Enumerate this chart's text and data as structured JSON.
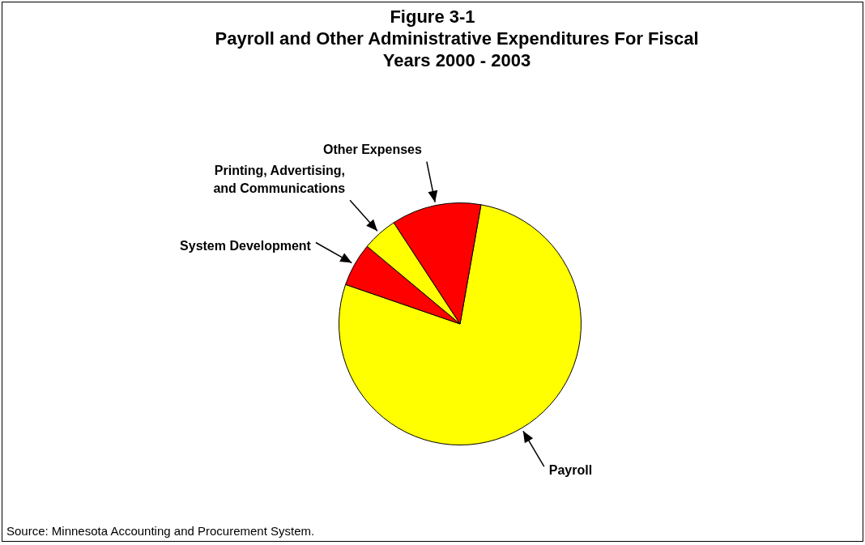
{
  "chart_data": {
    "type": "pie",
    "title": "Figure 3-1",
    "subtitle": "Payroll and Other Administrative Expenditures For Fiscal Years 2000 - 2003",
    "categories": [
      "Payroll",
      "System Development",
      "Printing, Advertising, and Communications",
      "Other Expenses"
    ],
    "values": [
      77.5,
      5.8,
      4.7,
      12
    ],
    "colors": [
      "#ffff00",
      "#ff0000",
      "#ffff00",
      "#ff0000"
    ],
    "legend": false,
    "annotations": [
      "Source:  Minnesota Accounting and Procurement System."
    ]
  }
}
